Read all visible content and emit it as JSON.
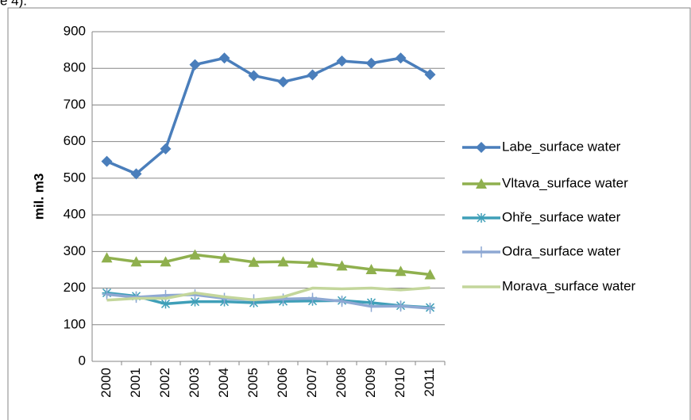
{
  "caption": "e 4).",
  "chart_data": {
    "type": "line",
    "ylabel": "mil. m3",
    "categories": [
      "2000",
      "2001",
      "2002",
      "2003",
      "2004",
      "2005",
      "2006",
      "2007",
      "2008",
      "2009",
      "2010",
      "2011"
    ],
    "ylim": [
      0,
      900
    ],
    "yticks": [
      0,
      100,
      200,
      300,
      400,
      500,
      600,
      700,
      800,
      900
    ],
    "grid": true,
    "legend": "right",
    "series": [
      {
        "name": "Labe_surface water",
        "color": "#4a7ebb",
        "marker": "diamond",
        "values": [
          546,
          512,
          580,
          810,
          828,
          780,
          763,
          782,
          820,
          814,
          828,
          783
        ]
      },
      {
        "name": "Vltava_surface water",
        "color": "#8fb04e",
        "marker": "triangle",
        "values": [
          283,
          272,
          272,
          291,
          282,
          271,
          272,
          269,
          261,
          251,
          246,
          237
        ]
      },
      {
        "name": "Ohře_surface water",
        "color": "#3f9fb8",
        "marker": "star",
        "values": [
          187,
          178,
          157,
          163,
          163,
          160,
          164,
          165,
          166,
          160,
          152,
          147
        ]
      },
      {
        "name": "Odra_surface water",
        "color": "#8ea8d3",
        "marker": "plus",
        "values": [
          183,
          175,
          180,
          182,
          172,
          168,
          170,
          172,
          164,
          150,
          151,
          145
        ]
      },
      {
        "name": "Morava_surface water",
        "color": "#c3d69b",
        "marker": "none",
        "values": [
          167,
          172,
          172,
          187,
          176,
          168,
          176,
          200,
          198,
          200,
          195,
          201
        ]
      }
    ]
  }
}
